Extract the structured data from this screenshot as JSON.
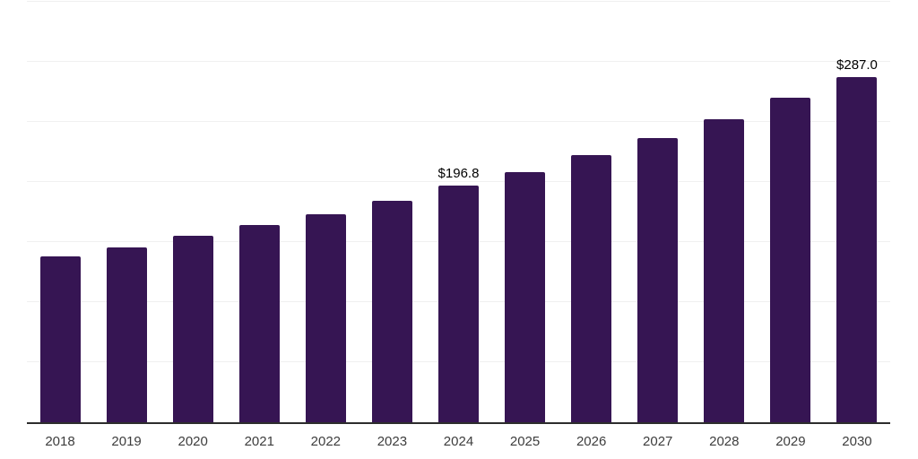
{
  "chart_data": {
    "type": "bar",
    "title": "",
    "categories": [
      "2018",
      "2019",
      "2020",
      "2021",
      "2022",
      "2023",
      "2024",
      "2025",
      "2026",
      "2027",
      "2028",
      "2029",
      "2030"
    ],
    "values": [
      138.4,
      145.9,
      155.3,
      163.9,
      173.0,
      184.3,
      196.8,
      208.5,
      222.3,
      236.6,
      252.5,
      270.1,
      287.0
    ],
    "data_labels": [
      "",
      "",
      "",
      "",
      "",
      "",
      "$196.8",
      "",
      "",
      "",
      "",
      "",
      "$287.0"
    ],
    "ylim": [
      0,
      350
    ],
    "gridline_step": 50,
    "grid": true,
    "legend": "none",
    "y_tick_labels_shown": false,
    "colors": {
      "bar": "#361553",
      "gridline": "#f0f0f0",
      "axis": "#2d2d2d",
      "value_label": "#000000",
      "tick_label": "#3d3d3d",
      "background": "#ffffff"
    }
  }
}
